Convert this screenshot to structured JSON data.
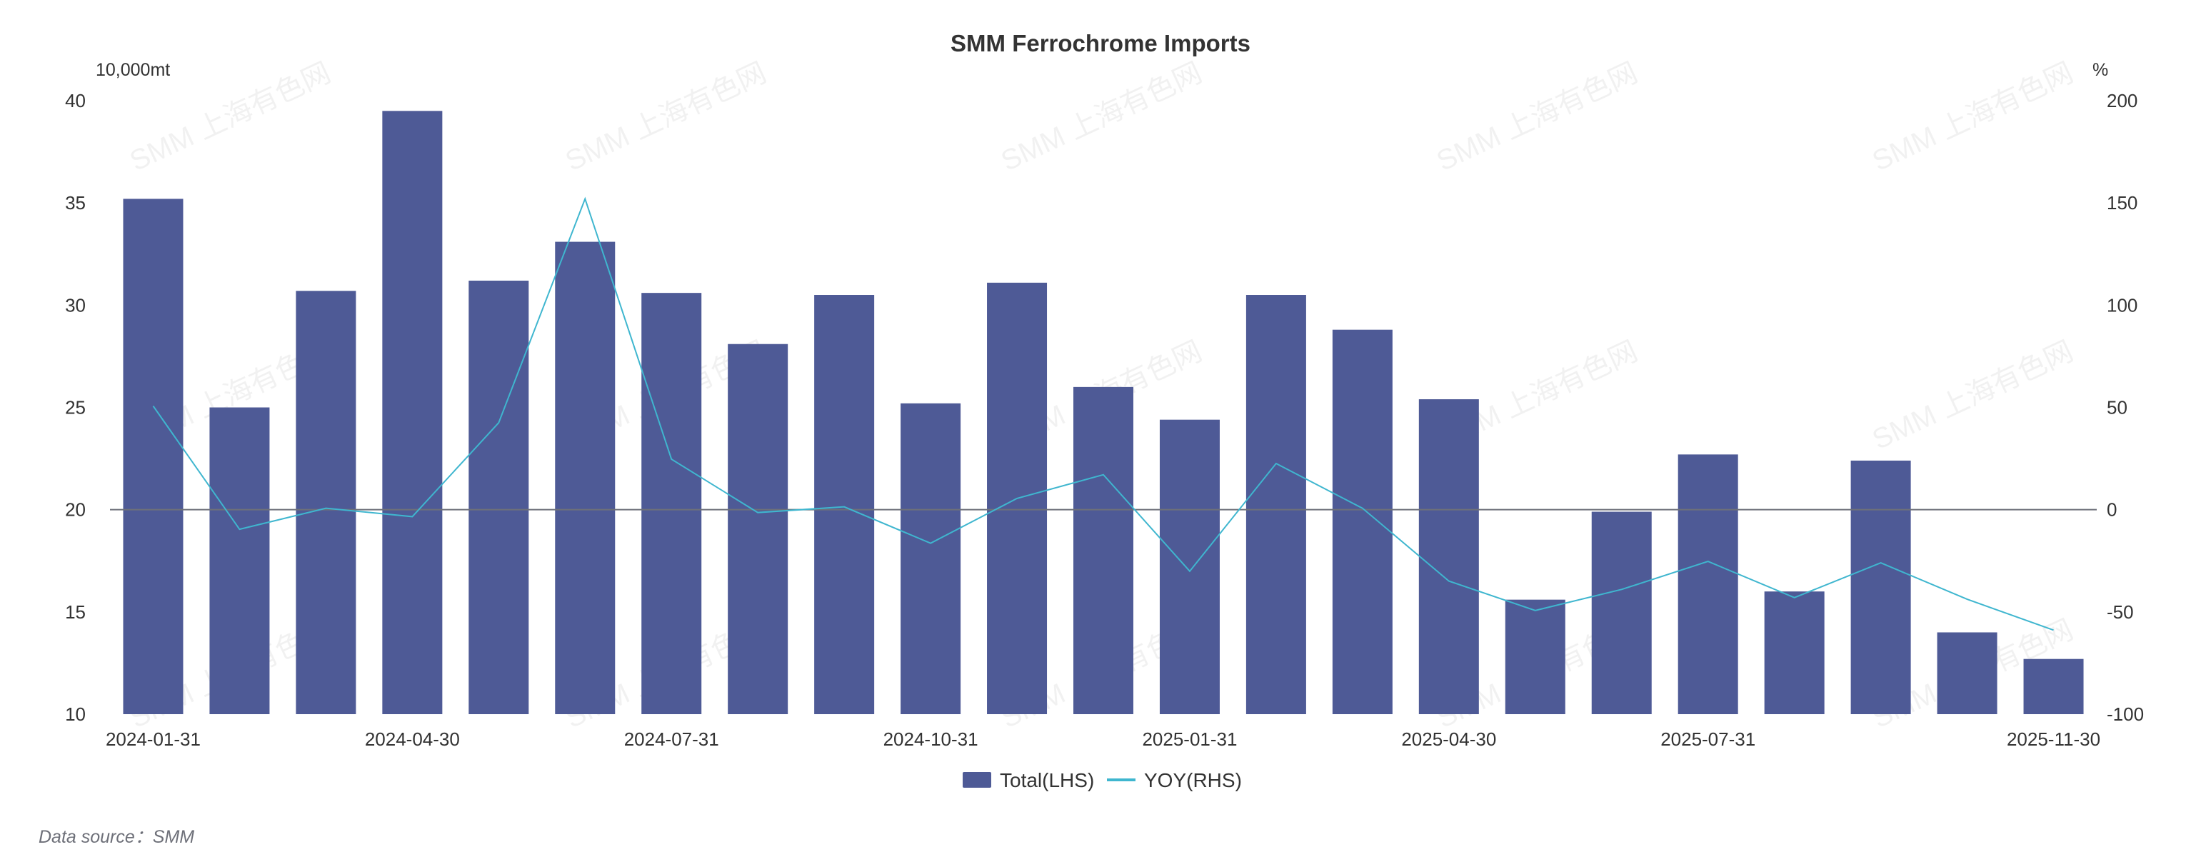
{
  "chart_data": {
    "type": "bar",
    "title": "SMM Ferrochrome Imports",
    "left_unit": "10,000mt",
    "right_unit": "%",
    "categories": [
      "2024-01-31",
      "2024-02-29",
      "2024-03-31",
      "2024-04-30",
      "2024-05-31",
      "2024-06-30",
      "2024-07-31",
      "2024-08-31",
      "2024-09-30",
      "2024-10-31",
      "2024-11-30",
      "2024-12-31",
      "2025-01-31",
      "2025-02-28",
      "2025-03-31",
      "2025-04-30",
      "2025-05-31",
      "2025-06-30",
      "2025-07-31",
      "2025-08-31",
      "2025-09-30",
      "2025-10-31",
      "2025-11-30"
    ],
    "shown_x_labels": [
      "2024-01-31",
      "2024-04-30",
      "2024-07-31",
      "2024-10-31",
      "2025-01-31",
      "2025-04-30",
      "2025-07-31",
      "2025-11-30"
    ],
    "series": [
      {
        "name": "Total(LHS)",
        "type": "bar",
        "axis": "left",
        "color": "#4e5a96",
        "values": [
          35.2,
          25.0,
          30.7,
          39.5,
          31.2,
          33.1,
          30.6,
          28.1,
          30.5,
          25.2,
          31.1,
          26.0,
          24.4,
          30.5,
          28.8,
          25.4,
          15.6,
          19.9,
          22.7,
          16.0,
          22.4,
          14.0,
          12.7
        ]
      },
      {
        "name": "YOY(RHS)",
        "type": "line",
        "axis": "right",
        "color": "#3fb6cf",
        "values": [
          50.7,
          -9.6,
          0.7,
          -3.4,
          42.5,
          152,
          24.7,
          -1.4,
          1.4,
          -16.4,
          5.5,
          17.1,
          -30.1,
          22.6,
          0.7,
          -34.9,
          -49.3,
          -39,
          -25.3,
          -43,
          -26,
          -43.8,
          -58.9
        ]
      }
    ],
    "left_axis": {
      "ylim": [
        10,
        40
      ],
      "ticks": [
        "10",
        "15",
        "20",
        "25",
        "30",
        "35",
        "40"
      ]
    },
    "right_axis": {
      "ylim": [
        -100,
        200
      ],
      "ticks": [
        "-100",
        "-50",
        "0",
        "50",
        "100",
        "150",
        "200"
      ]
    },
    "legend_position": "bottom-center",
    "grid": false
  },
  "watermark": "SMM 上海有色网",
  "footer": {
    "source": "Data source：SMM"
  }
}
